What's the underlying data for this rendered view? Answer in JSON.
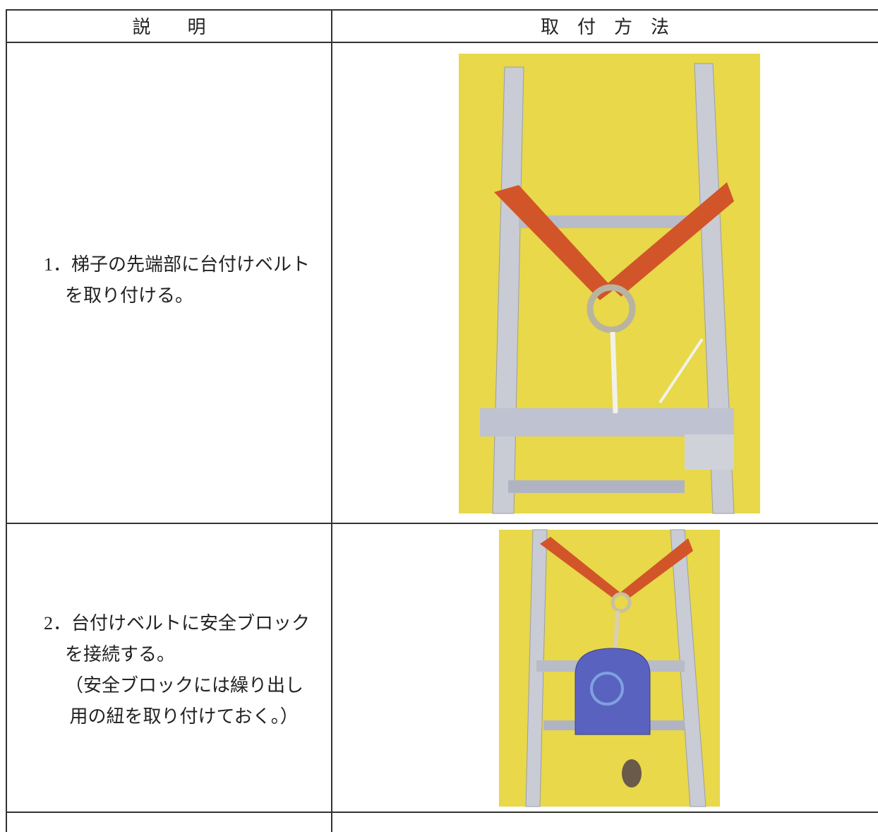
{
  "header": {
    "description": "説　　明",
    "method": "取　付　方　法"
  },
  "rows": [
    {
      "lines": [
        "1．梯子の先端部に台付けベルト",
        "を取り付ける。"
      ]
    },
    {
      "lines": [
        "2．台付けベルトに安全ブロック",
        "を接続する。",
        "（安全ブロックには繰り出し",
        " 用の紐を取り付けておく。）"
      ]
    }
  ]
}
